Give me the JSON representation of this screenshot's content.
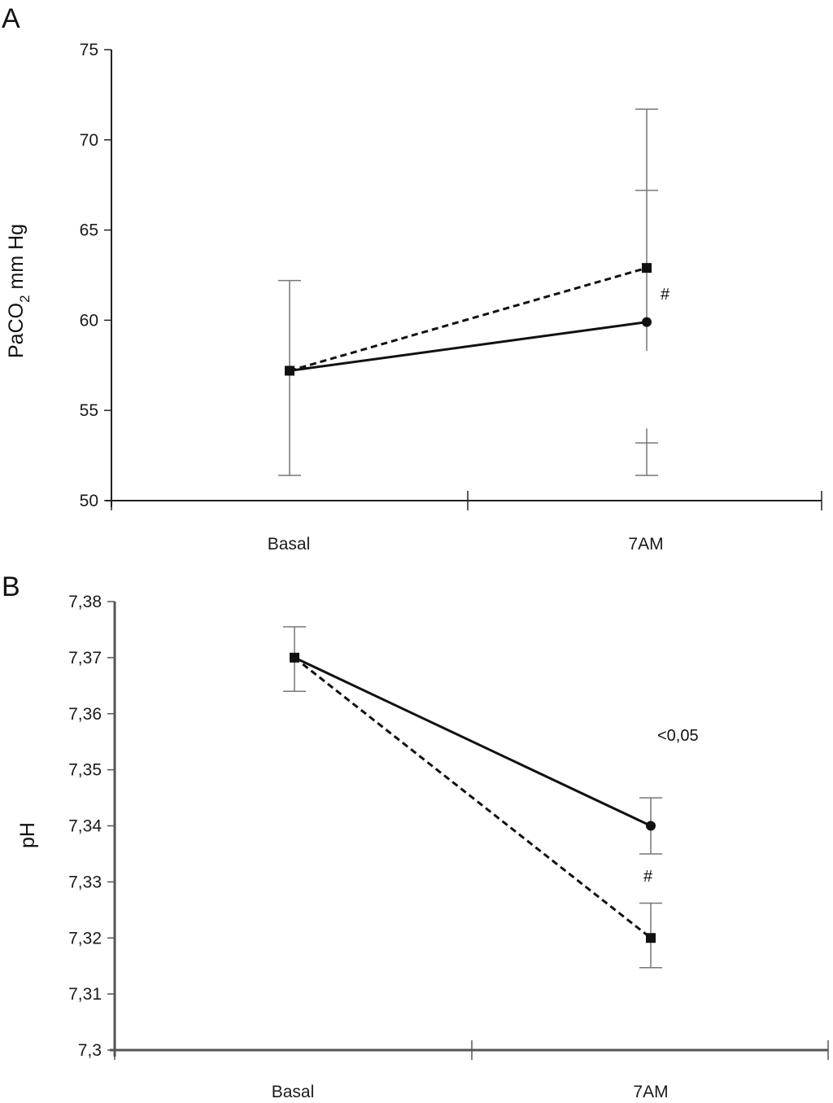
{
  "chart_data": [
    {
      "panel": "A",
      "type": "line",
      "ylabel": "PaCO2 mm Hg",
      "ylabel_main": "PaCO",
      "ylabel_sub": "2",
      "ylabel_rest": " mm Hg",
      "categories": [
        "Basal",
        "7AM"
      ],
      "ylim": [
        50,
        75
      ],
      "yticks": [
        "75",
        "70",
        "65",
        "60",
        "55",
        "50"
      ],
      "ytick_values": [
        75,
        70,
        65,
        60,
        55,
        50
      ],
      "series": [
        {
          "name": "solid",
          "style": "solid",
          "marker": "circle",
          "values": [
            57.2,
            59.9
          ]
        },
        {
          "name": "dashed",
          "style": "dashed",
          "marker": "square",
          "values": [
            57.2,
            62.9
          ]
        }
      ],
      "error_bars": [
        {
          "category": "Basal",
          "caps": [
            62.2,
            51.4
          ],
          "range": [
            51.4,
            62.2
          ]
        },
        {
          "category": "7AM",
          "caps": [
            71.7,
            67.2,
            53.2,
            51.4
          ],
          "segments": [
            [
              58.3,
              71.7
            ],
            [
              51.4,
              54.0
            ]
          ]
        }
      ],
      "annotations": [
        "#"
      ]
    },
    {
      "panel": "B",
      "type": "line",
      "ylabel": "pH",
      "categories": [
        "Basal",
        "7AM"
      ],
      "ylim": [
        7.3,
        7.38
      ],
      "yticks": [
        "7,38",
        "7,37",
        "7,36",
        "7,35",
        "7,34",
        "7,33",
        "7,32",
        "7,31",
        "7,3"
      ],
      "ytick_values": [
        7.38,
        7.37,
        7.36,
        7.35,
        7.34,
        7.33,
        7.32,
        7.31,
        7.3
      ],
      "series": [
        {
          "name": "solid",
          "style": "solid",
          "marker": "circle",
          "values": [
            7.37,
            7.34
          ]
        },
        {
          "name": "dashed",
          "style": "dashed",
          "marker": "square",
          "values": [
            7.37,
            7.32
          ]
        }
      ],
      "error_bars": [
        {
          "category": "Basal",
          "range": [
            7.364,
            7.3755
          ]
        },
        {
          "category": "7AM",
          "series": "solid",
          "range": [
            7.335,
            7.345
          ]
        },
        {
          "category": "7AM",
          "series": "dashed",
          "range": [
            7.3147,
            7.3262
          ]
        }
      ],
      "annotations": [
        "<0,05",
        "#"
      ]
    }
  ],
  "panels": {
    "a_label": "A",
    "b_label": "B"
  },
  "colors": {
    "line": "#111111",
    "axis": "#222222",
    "error": "#777777"
  }
}
